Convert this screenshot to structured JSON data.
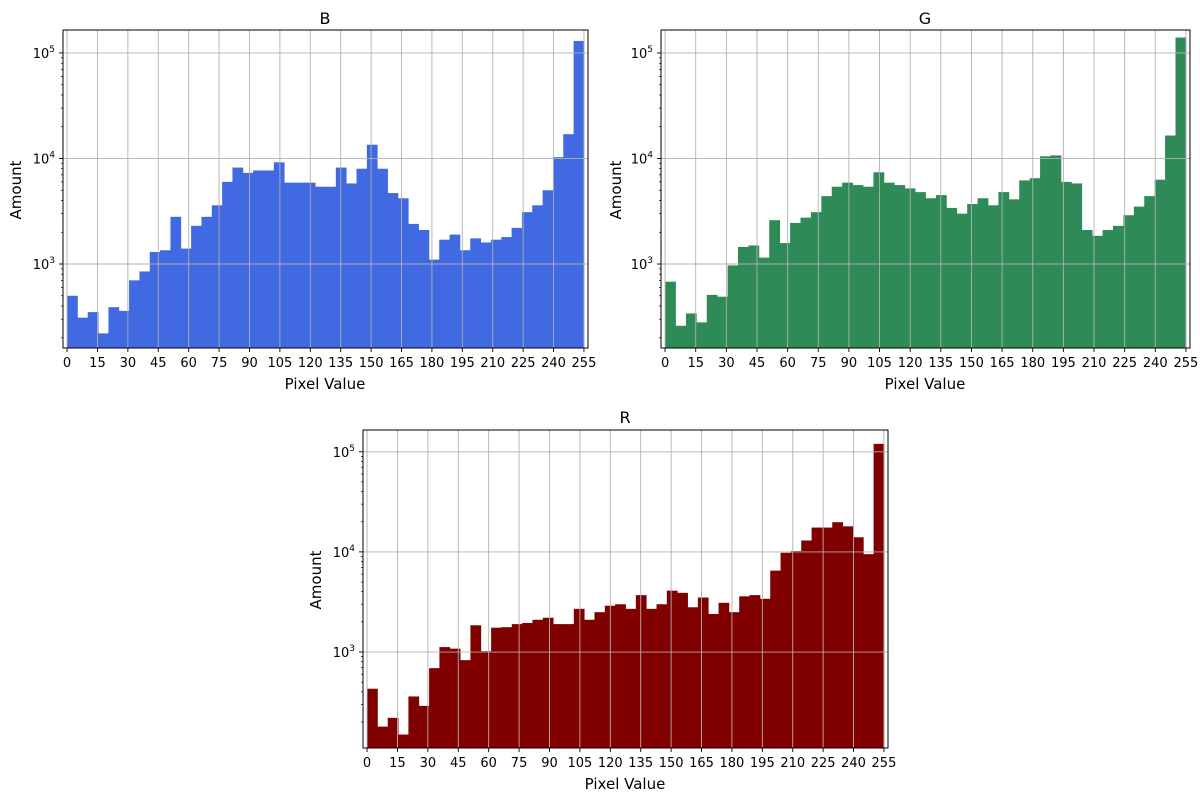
{
  "chart_data": [
    {
      "type": "bar",
      "title": "B",
      "xlabel": "Pixel Value",
      "ylabel": "Amount",
      "y_scale": "log",
      "xlim": [
        -2,
        257
      ],
      "ylim": [
        160,
        165000
      ],
      "grid": true,
      "color": "#4169e1",
      "bin_range": [
        0,
        255
      ],
      "xticks": [
        0,
        15,
        30,
        45,
        60,
        75,
        90,
        105,
        120,
        135,
        150,
        165,
        180,
        195,
        210,
        225,
        240,
        255
      ],
      "yticks": [
        {
          "value": 1000,
          "label": "10",
          "exp": "3"
        },
        {
          "value": 10000,
          "label": "10",
          "exp": "4"
        },
        {
          "value": 100000,
          "label": "10",
          "exp": "5"
        }
      ],
      "values": [
        500,
        310,
        350,
        220,
        390,
        360,
        700,
        850,
        1300,
        1350,
        2800,
        1400,
        2300,
        2800,
        3600,
        6000,
        8200,
        7300,
        7700,
        7700,
        9200,
        5900,
        5900,
        5900,
        5400,
        5400,
        8200,
        5800,
        8000,
        13500,
        8000,
        4700,
        4200,
        2400,
        2100,
        1100,
        1700,
        1900,
        1350,
        1750,
        1600,
        1700,
        1800,
        2200,
        3100,
        3600,
        5000,
        10300,
        17000,
        130000
      ]
    },
    {
      "type": "bar",
      "title": "G",
      "xlabel": "Pixel Value",
      "ylabel": "Amount",
      "y_scale": "log",
      "xlim": [
        -2,
        257
      ],
      "ylim": [
        160,
        165000
      ],
      "grid": true,
      "color": "#2e8b57",
      "bin_range": [
        0,
        255
      ],
      "xticks": [
        0,
        15,
        30,
        45,
        60,
        75,
        90,
        105,
        120,
        135,
        150,
        165,
        180,
        195,
        210,
        225,
        240,
        255
      ],
      "yticks": [
        {
          "value": 1000,
          "label": "10",
          "exp": "3"
        },
        {
          "value": 10000,
          "label": "10",
          "exp": "4"
        },
        {
          "value": 100000,
          "label": "10",
          "exp": "5"
        }
      ],
      "values": [
        680,
        260,
        340,
        280,
        510,
        490,
        970,
        1450,
        1500,
        1150,
        2600,
        1580,
        2450,
        2750,
        3100,
        4400,
        5400,
        5900,
        5600,
        5400,
        7400,
        5900,
        5600,
        5200,
        4800,
        4200,
        4500,
        3400,
        3000,
        3700,
        4200,
        3600,
        4800,
        4100,
        6200,
        6500,
        10500,
        10700,
        6000,
        5800,
        2100,
        1850,
        2100,
        2300,
        2900,
        3500,
        4400,
        6300,
        16500,
        140000
      ]
    },
    {
      "type": "bar",
      "title": "R",
      "xlabel": "Pixel Value",
      "ylabel": "Amount",
      "y_scale": "log",
      "xlim": [
        -2,
        257
      ],
      "ylim": [
        110,
        165000
      ],
      "grid": true,
      "color": "#800000",
      "bin_range": [
        0,
        255
      ],
      "xticks": [
        0,
        15,
        30,
        45,
        60,
        75,
        90,
        105,
        120,
        135,
        150,
        165,
        180,
        195,
        210,
        225,
        240,
        255
      ],
      "yticks": [
        {
          "value": 1000,
          "label": "10",
          "exp": "3"
        },
        {
          "value": 10000,
          "label": "10",
          "exp": "4"
        },
        {
          "value": 100000,
          "label": "10",
          "exp": "5"
        }
      ],
      "values": [
        430,
        180,
        220,
        150,
        360,
        290,
        690,
        1120,
        1080,
        830,
        1850,
        1020,
        1750,
        1770,
        1900,
        1950,
        2100,
        2200,
        1900,
        1900,
        2700,
        2100,
        2500,
        2900,
        3000,
        2700,
        3700,
        2700,
        3000,
        4100,
        3900,
        2800,
        3500,
        2400,
        3100,
        2500,
        3600,
        3700,
        3400,
        6500,
        9800,
        10200,
        13000,
        17500,
        17500,
        19800,
        18000,
        14000,
        9500,
        120000
      ]
    }
  ]
}
